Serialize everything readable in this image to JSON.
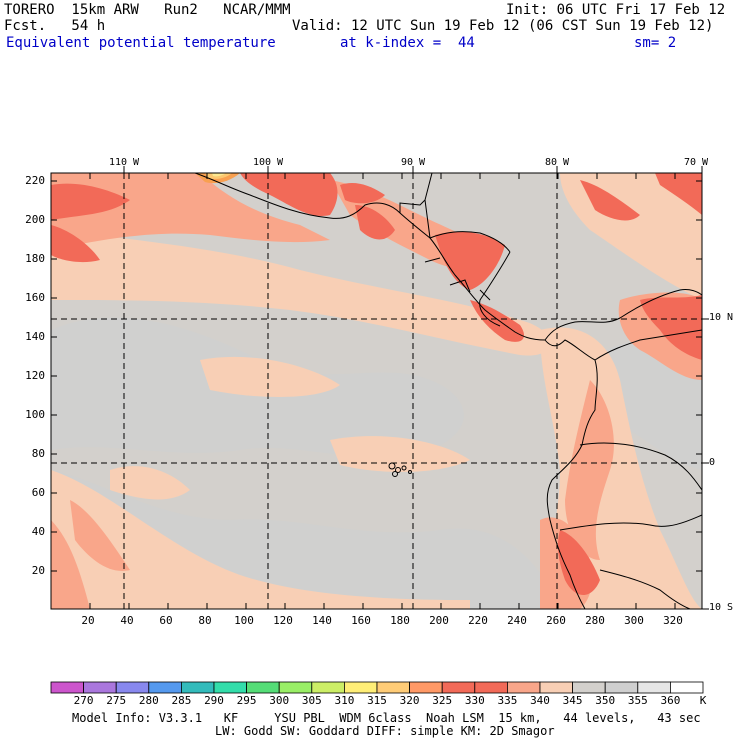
{
  "header": {
    "model": "TORERO  15km ARW   Run2   NCAR/MMM",
    "init": "Init: 06 UTC Fri 17 Feb 12",
    "fcst": "Fcst.   54 h",
    "valid": "Valid: 12 UTC Sun 19 Feb 12 (06 CST Sun 19 Feb 12)",
    "field": "Equivalent potential temperature",
    "level": "at k-index =  44",
    "smooth": "sm= 2"
  },
  "map": {
    "lon_labels": [
      "110 W",
      "100 W",
      "90 W",
      "80 W",
      "70 W"
    ],
    "lat_labels": [
      "10 N",
      "0",
      "10 S"
    ],
    "y_ticks": [
      "20",
      "40",
      "60",
      "80",
      "100",
      "120",
      "140",
      "160",
      "180",
      "200",
      "220"
    ],
    "x_ticks": [
      "20",
      "40",
      "60",
      "80",
      "100",
      "120",
      "140",
      "160",
      "180",
      "200",
      "220",
      "240",
      "260",
      "280",
      "300",
      "320"
    ],
    "colors": {
      "base": "#d3d0cc",
      "light": "#cfcfcf",
      "c340": "#f8cfb5",
      "c335": "#f9a68a",
      "c330": "#f26a58",
      "c325": "#f9a050",
      "c320": "#fcc870",
      "c315": "#fde890"
    }
  },
  "colorbar": {
    "labels": [
      "270",
      "275",
      "280",
      "285",
      "290",
      "295",
      "300",
      "305",
      "310",
      "315",
      "320",
      "325",
      "330",
      "335",
      "340",
      "345",
      "350",
      "355",
      "360"
    ],
    "unit": "K",
    "colors": [
      "#cc55cc",
      "#aa77dd",
      "#8888ee",
      "#5599ee",
      "#33bbbb",
      "#33ddaa",
      "#55dd77",
      "#99ee66",
      "#ccee66",
      "#ffee77",
      "#ffcc77",
      "#ff9966",
      "#f26a58",
      "#f26a58",
      "#f9a68a",
      "#f8cfb5",
      "#d3d0cc",
      "#cfcfcf",
      "#e6e6e6",
      "#ffffff"
    ]
  },
  "footer": {
    "line1": "Model Info: V3.3.1   KF     YSU PBL  WDM 6class  Noah LSM  15 km,   44 levels,   43 sec",
    "line2": "LW: Godd SW: Goddard DIFF: simple KM: 2D Smagor"
  }
}
